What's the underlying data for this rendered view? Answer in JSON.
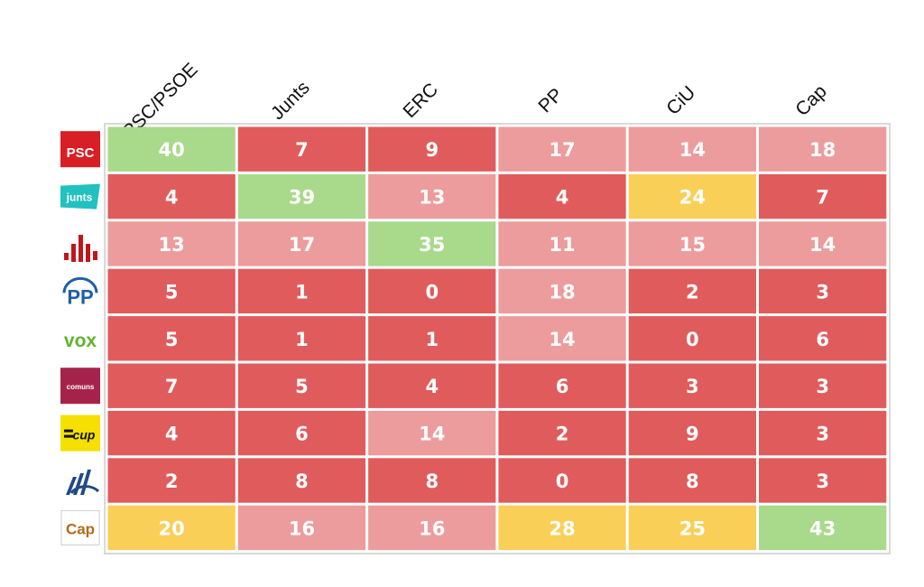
{
  "chart_data": {
    "type": "heatmap",
    "columns": [
      "PSC/PSOE",
      "Junts",
      "ERC",
      "PP",
      "CiU",
      "Cap"
    ],
    "rows": [
      {
        "party": "PSC",
        "logo_text": "PSC",
        "values": [
          40,
          7,
          9,
          17,
          14,
          18
        ]
      },
      {
        "party": "Junts",
        "logo_text": "junts",
        "values": [
          4,
          39,
          13,
          4,
          24,
          7
        ]
      },
      {
        "party": "ERC",
        "logo_text": "",
        "values": [
          13,
          17,
          35,
          11,
          15,
          14
        ]
      },
      {
        "party": "PP",
        "logo_text": "PP",
        "values": [
          5,
          1,
          0,
          18,
          2,
          3
        ]
      },
      {
        "party": "VOX",
        "logo_text": "vox",
        "values": [
          5,
          1,
          1,
          14,
          0,
          6
        ]
      },
      {
        "party": "Comuns",
        "logo_text": "comuns",
        "values": [
          7,
          5,
          4,
          6,
          3,
          3
        ]
      },
      {
        "party": "CUP",
        "logo_text": "cup",
        "values": [
          4,
          6,
          14,
          2,
          9,
          3
        ]
      },
      {
        "party": "Aliança",
        "logo_text": "",
        "values": [
          2,
          8,
          8,
          0,
          8,
          3
        ]
      },
      {
        "party": "Cap",
        "logo_text": "Cap",
        "values": [
          20,
          16,
          16,
          28,
          25,
          43
        ]
      }
    ],
    "cell_categories": [
      [
        "green",
        "red",
        "red",
        "pink",
        "pink",
        "pink"
      ],
      [
        "red",
        "green",
        "pink",
        "red",
        "yellow",
        "red"
      ],
      [
        "pink",
        "pink",
        "green",
        "pink",
        "pink",
        "pink"
      ],
      [
        "red",
        "red",
        "red",
        "pink",
        "red",
        "red"
      ],
      [
        "red",
        "red",
        "red",
        "pink",
        "red",
        "red"
      ],
      [
        "red",
        "red",
        "red",
        "red",
        "red",
        "red"
      ],
      [
        "red",
        "red",
        "pink",
        "red",
        "red",
        "red"
      ],
      [
        "red",
        "red",
        "red",
        "red",
        "red",
        "red"
      ],
      [
        "yellow",
        "pink",
        "pink",
        "yellow",
        "yellow",
        "green"
      ]
    ],
    "colors": {
      "green": "#a9d98b",
      "red": "#e05c5c",
      "pink": "#ec9c9c",
      "yellow": "#f9cf58",
      "grid_border": "#d9d9d9"
    },
    "logo_colors": {
      "PSC": "#d81f26",
      "Junts": "#22c1c0",
      "ERC": "#c0161b",
      "PP": "#1d5ea8",
      "VOX": "#5fb52f",
      "Comuns": "#a5234b",
      "CUP": "#f6e000",
      "Aliança": "#1f4a86",
      "Cap": "#b36a1a"
    }
  }
}
